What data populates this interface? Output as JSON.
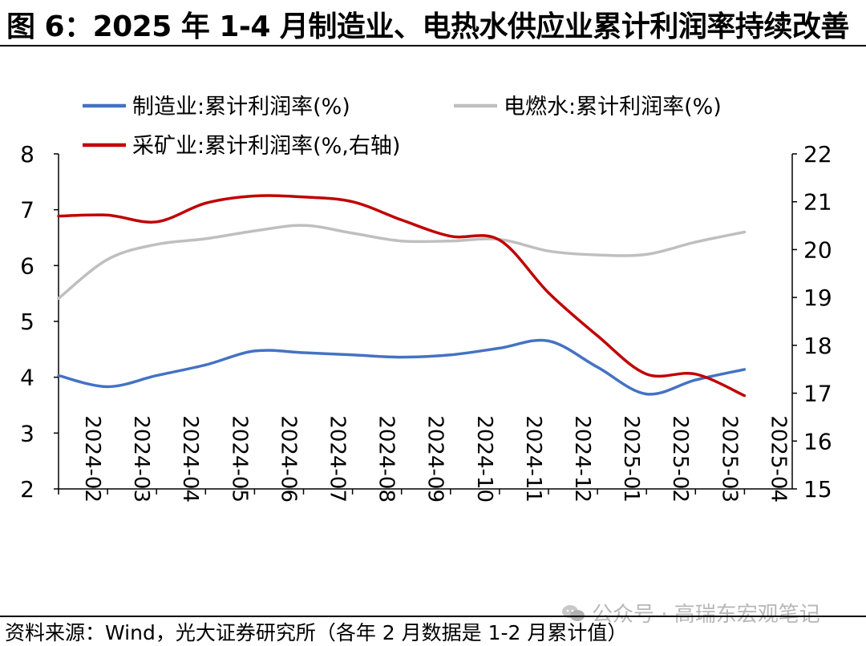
{
  "figure_title": "图 6：2025 年 1-4 月制造业、电热水供应业累计利润率持续改善",
  "source": "资料来源：Wind，光大证券研究所（各年 2 月数据是 1-2 月累计值）",
  "watermark": "公众号 · 高瑞东宏观笔记",
  "watermark_icon": "wechat-icon",
  "chart_data": {
    "type": "line",
    "title": "",
    "categories": [
      "2024-02",
      "2024-03",
      "2024-04",
      "2024-05",
      "2024-06",
      "2024-07",
      "2024-08",
      "2024-09",
      "2024-10",
      "2024-11",
      "2024-12",
      "2025-01",
      "2025-02",
      "2025-03",
      "2025-04"
    ],
    "y_left": {
      "label": "",
      "min": 2,
      "max": 8,
      "ticks": [
        2,
        3,
        4,
        5,
        6,
        7,
        8
      ]
    },
    "y_right": {
      "label": "",
      "min": 15,
      "max": 22,
      "ticks": [
        15,
        16,
        17,
        18,
        19,
        20,
        21,
        22
      ]
    },
    "grid": false,
    "legend_position": "top",
    "series": [
      {
        "name": "制造业:累计利润率(%)",
        "axis": "left",
        "color": "#4472C4",
        "values": [
          4.03,
          3.83,
          4.03,
          4.22,
          4.47,
          4.44,
          4.4,
          4.36,
          4.4,
          4.52,
          4.65,
          4.18,
          3.7,
          3.95,
          4.14
        ]
      },
      {
        "name": "电燃水:累计利润率(%)",
        "axis": "left",
        "color": "#BFBFBF",
        "values": [
          5.41,
          6.11,
          6.38,
          6.48,
          6.62,
          6.72,
          6.58,
          6.44,
          6.44,
          6.47,
          6.26,
          6.19,
          6.2,
          6.42,
          6.6
        ]
      },
      {
        "name": "采矿业:累计利润率(%,右轴)",
        "axis": "right",
        "color": "#C00000",
        "values": [
          20.7,
          20.72,
          20.58,
          20.97,
          21.12,
          21.1,
          21.0,
          20.62,
          20.28,
          20.2,
          19.1,
          18.2,
          17.4,
          17.4,
          16.95
        ]
      }
    ]
  }
}
